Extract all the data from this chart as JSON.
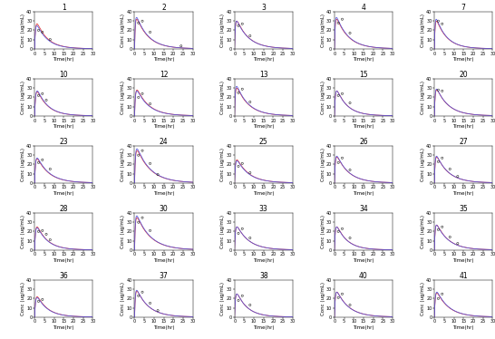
{
  "subjects": [
    1,
    2,
    3,
    4,
    7,
    10,
    12,
    13,
    15,
    20,
    23,
    24,
    25,
    26,
    27,
    28,
    30,
    33,
    34,
    35,
    36,
    37,
    38,
    40,
    41
  ],
  "n_rows": 5,
  "n_cols": 5,
  "xlim": [
    0,
    30
  ],
  "ylim": [
    0,
    40
  ],
  "xlabel": "Time(hr)",
  "ylabel": "Conc (ug/mL)",
  "ytick_labels": [
    "0",
    "10",
    "20",
    "30",
    "40"
  ],
  "yticks": [
    0,
    10,
    20,
    30,
    40
  ],
  "xticks": [
    0,
    5,
    10,
    15,
    20,
    25,
    30
  ],
  "blue_line_color": "#5555dd",
  "red_line_color": "#dd3333",
  "obs_color": "#222222",
  "bg_color": "white",
  "title_fontsize": 5.5,
  "axis_label_fontsize": 4.0,
  "tick_fontsize": 3.5,
  "curve_params": {
    "1": {
      "ka": 2.5,
      "kel": 0.18,
      "peak": 25,
      "obs_t": [
        2,
        4,
        8
      ],
      "obs_c": [
        20,
        18,
        10
      ]
    },
    "2": {
      "ka": 3.0,
      "kel": 0.16,
      "peak": 34,
      "obs_t": [
        2,
        4,
        8,
        24
      ],
      "obs_c": [
        28,
        30,
        18,
        3
      ]
    },
    "3": {
      "ka": 2.8,
      "kel": 0.16,
      "peak": 30,
      "obs_t": [
        2,
        4,
        8
      ],
      "obs_c": [
        25,
        27,
        14
      ]
    },
    "4": {
      "ka": 3.0,
      "kel": 0.16,
      "peak": 34,
      "obs_t": [
        2,
        4,
        8
      ],
      "obs_c": [
        28,
        32,
        17
      ]
    },
    "7": {
      "ka": 3.2,
      "kel": 0.18,
      "peak": 32,
      "obs_t": [
        2,
        4
      ],
      "obs_c": [
        30,
        27
      ]
    },
    "10": {
      "ka": 2.0,
      "kel": 0.18,
      "peak": 27,
      "obs_t": [
        2,
        4,
        6
      ],
      "obs_c": [
        22,
        24,
        17
      ]
    },
    "12": {
      "ka": 2.5,
      "kel": 0.16,
      "peak": 27,
      "obs_t": [
        2,
        4,
        8
      ],
      "obs_c": [
        20,
        24,
        13
      ]
    },
    "13": {
      "ka": 2.8,
      "kel": 0.16,
      "peak": 32,
      "obs_t": [
        2,
        4,
        8
      ],
      "obs_c": [
        25,
        29,
        15
      ]
    },
    "15": {
      "ka": 2.4,
      "kel": 0.18,
      "peak": 27,
      "obs_t": [
        2,
        4,
        8
      ],
      "obs_c": [
        22,
        24,
        14
      ]
    },
    "20": {
      "ka": 2.8,
      "kel": 0.16,
      "peak": 29,
      "obs_t": [
        2,
        4
      ],
      "obs_c": [
        28,
        27
      ]
    },
    "23": {
      "ka": 2.2,
      "kel": 0.16,
      "peak": 27,
      "obs_t": [
        2,
        4,
        8
      ],
      "obs_c": [
        22,
        25,
        15
      ]
    },
    "24": {
      "ka": 2.5,
      "kel": 0.14,
      "peak": 37,
      "obs_t": [
        2,
        4,
        8,
        12
      ],
      "obs_c": [
        30,
        35,
        21,
        9
      ]
    },
    "25": {
      "ka": 2.3,
      "kel": 0.16,
      "peak": 24,
      "obs_t": [
        2,
        4,
        8
      ],
      "obs_c": [
        18,
        21,
        11
      ]
    },
    "26": {
      "ka": 2.5,
      "kel": 0.16,
      "peak": 29,
      "obs_t": [
        2,
        4,
        8
      ],
      "obs_c": [
        22,
        27,
        14
      ]
    },
    "27": {
      "ka": 2.8,
      "kel": 0.16,
      "peak": 29,
      "obs_t": [
        2,
        4,
        8,
        12
      ],
      "obs_c": [
        23,
        27,
        15,
        7
      ]
    },
    "28": {
      "ka": 2.2,
      "kel": 0.18,
      "peak": 24,
      "obs_t": [
        2,
        4,
        6,
        8
      ],
      "obs_c": [
        20,
        21,
        17,
        11
      ]
    },
    "30": {
      "ka": 2.8,
      "kel": 0.14,
      "peak": 37,
      "obs_t": [
        2,
        4,
        8
      ],
      "obs_c": [
        30,
        35,
        21
      ]
    },
    "33": {
      "ka": 2.3,
      "kel": 0.16,
      "peak": 25,
      "obs_t": [
        2,
        4,
        8
      ],
      "obs_c": [
        18,
        23,
        13
      ]
    },
    "34": {
      "ka": 2.5,
      "kel": 0.18,
      "peak": 25,
      "obs_t": [
        2,
        4,
        8
      ],
      "obs_c": [
        20,
        23,
        13
      ]
    },
    "35": {
      "ka": 2.8,
      "kel": 0.16,
      "peak": 27,
      "obs_t": [
        2,
        4,
        8,
        12
      ],
      "obs_c": [
        22,
        25,
        14,
        7
      ]
    },
    "36": {
      "ka": 2.1,
      "kel": 0.18,
      "peak": 21,
      "obs_t": [
        2,
        4
      ],
      "obs_c": [
        17,
        19
      ]
    },
    "37": {
      "ka": 2.8,
      "kel": 0.16,
      "peak": 29,
      "obs_t": [
        2,
        4,
        8,
        12
      ],
      "obs_c": [
        23,
        27,
        15,
        7
      ]
    },
    "38": {
      "ka": 2.3,
      "kel": 0.18,
      "peak": 25,
      "obs_t": [
        2,
        4,
        8
      ],
      "obs_c": [
        18,
        23,
        13
      ]
    },
    "40": {
      "ka": 2.5,
      "kel": 0.16,
      "peak": 27,
      "obs_t": [
        2,
        4,
        8
      ],
      "obs_c": [
        21,
        25,
        13
      ]
    },
    "41": {
      "ka": 2.3,
      "kel": 0.16,
      "peak": 27,
      "obs_t": [
        2,
        4
      ],
      "obs_c": [
        20,
        25
      ]
    }
  },
  "pop_params": {
    "1": {
      "ka": 2.3,
      "kel": 0.18,
      "peak": 27
    },
    "2": {
      "ka": 2.7,
      "kel": 0.16,
      "peak": 32
    },
    "3": {
      "ka": 2.5,
      "kel": 0.16,
      "peak": 30
    },
    "4": {
      "ka": 2.7,
      "kel": 0.16,
      "peak": 32
    },
    "7": {
      "ka": 2.8,
      "kel": 0.18,
      "peak": 30
    },
    "10": {
      "ka": 2.1,
      "kel": 0.18,
      "peak": 26
    },
    "12": {
      "ka": 2.3,
      "kel": 0.16,
      "peak": 28
    },
    "13": {
      "ka": 2.5,
      "kel": 0.16,
      "peak": 30
    },
    "15": {
      "ka": 2.3,
      "kel": 0.18,
      "peak": 27
    },
    "20": {
      "ka": 2.5,
      "kel": 0.16,
      "peak": 28
    },
    "23": {
      "ka": 2.3,
      "kel": 0.16,
      "peak": 26
    },
    "24": {
      "ka": 2.3,
      "kel": 0.14,
      "peak": 35
    },
    "25": {
      "ka": 2.3,
      "kel": 0.16,
      "peak": 25
    },
    "26": {
      "ka": 2.3,
      "kel": 0.16,
      "peak": 28
    },
    "27": {
      "ka": 2.5,
      "kel": 0.16,
      "peak": 28
    },
    "28": {
      "ka": 2.2,
      "kel": 0.18,
      "peak": 25
    },
    "30": {
      "ka": 2.5,
      "kel": 0.14,
      "peak": 35
    },
    "33": {
      "ka": 2.3,
      "kel": 0.16,
      "peak": 25
    },
    "34": {
      "ka": 2.3,
      "kel": 0.18,
      "peak": 25
    },
    "35": {
      "ka": 2.5,
      "kel": 0.16,
      "peak": 27
    },
    "36": {
      "ka": 2.1,
      "kel": 0.18,
      "peak": 22
    },
    "37": {
      "ka": 2.5,
      "kel": 0.16,
      "peak": 28
    },
    "38": {
      "ka": 2.3,
      "kel": 0.18,
      "peak": 25
    },
    "40": {
      "ka": 2.3,
      "kel": 0.16,
      "peak": 27
    },
    "41": {
      "ka": 2.3,
      "kel": 0.16,
      "peak": 26
    }
  }
}
